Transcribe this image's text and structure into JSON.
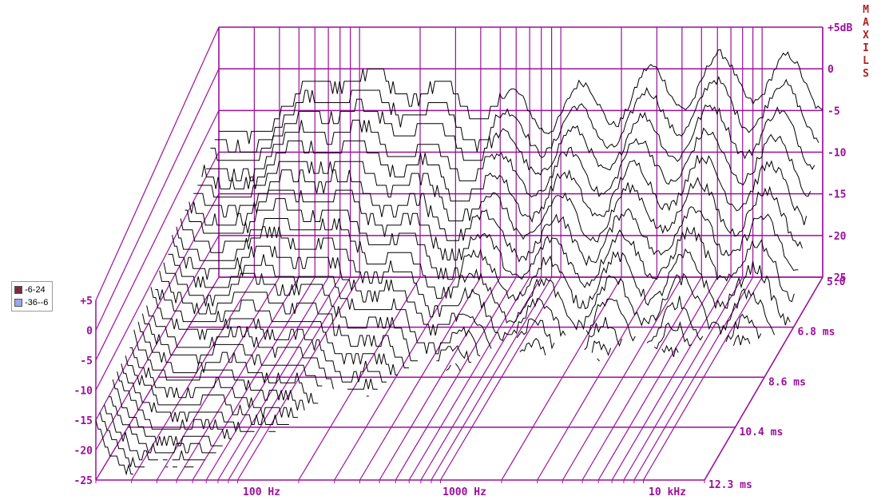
{
  "colors": {
    "grid": "#9c0f9c",
    "trace": "#000000",
    "brand": "#b22222"
  },
  "brand": "MAXILS",
  "legend": [
    {
      "label": "-6-24",
      "color": "#7b2b3f"
    },
    {
      "label": "-36--6",
      "color": "#9ea4f0"
    }
  ],
  "chart_data": {
    "type": "waterfall",
    "title": "",
    "y_unit_label": "dB",
    "y_ticks": [
      "+5",
      "0",
      "-5",
      "-10",
      "-15",
      "-20",
      "-25"
    ],
    "y_tick_values": [
      5,
      0,
      -5,
      -10,
      -15,
      -20,
      -25
    ],
    "ylim": [
      -25,
      5
    ],
    "x_scale": "log",
    "xlim": [
      20,
      20000
    ],
    "x_tick_labels": [
      {
        "label": "100 Hz",
        "value": 100
      },
      {
        "label": "1000 Hz",
        "value": 1000
      },
      {
        "label": "10 kHz",
        "value": 10000
      }
    ],
    "z_ticks": [
      "5.0",
      "6.8 ms",
      "8.6 ms",
      "10.4 ms",
      "12.3 ms"
    ],
    "z_tick_values": [
      5.0,
      6.8,
      8.6,
      10.4,
      12.3
    ],
    "zlim": [
      5.0,
      12.3
    ],
    "grid": true,
    "slice_count": 30,
    "legend_position": "left",
    "series": [
      {
        "name": "-6-24",
        "range_db": [
          -6,
          24
        ]
      },
      {
        "name": "-36--6",
        "range_db": [
          -36,
          -6
        ]
      }
    ]
  }
}
